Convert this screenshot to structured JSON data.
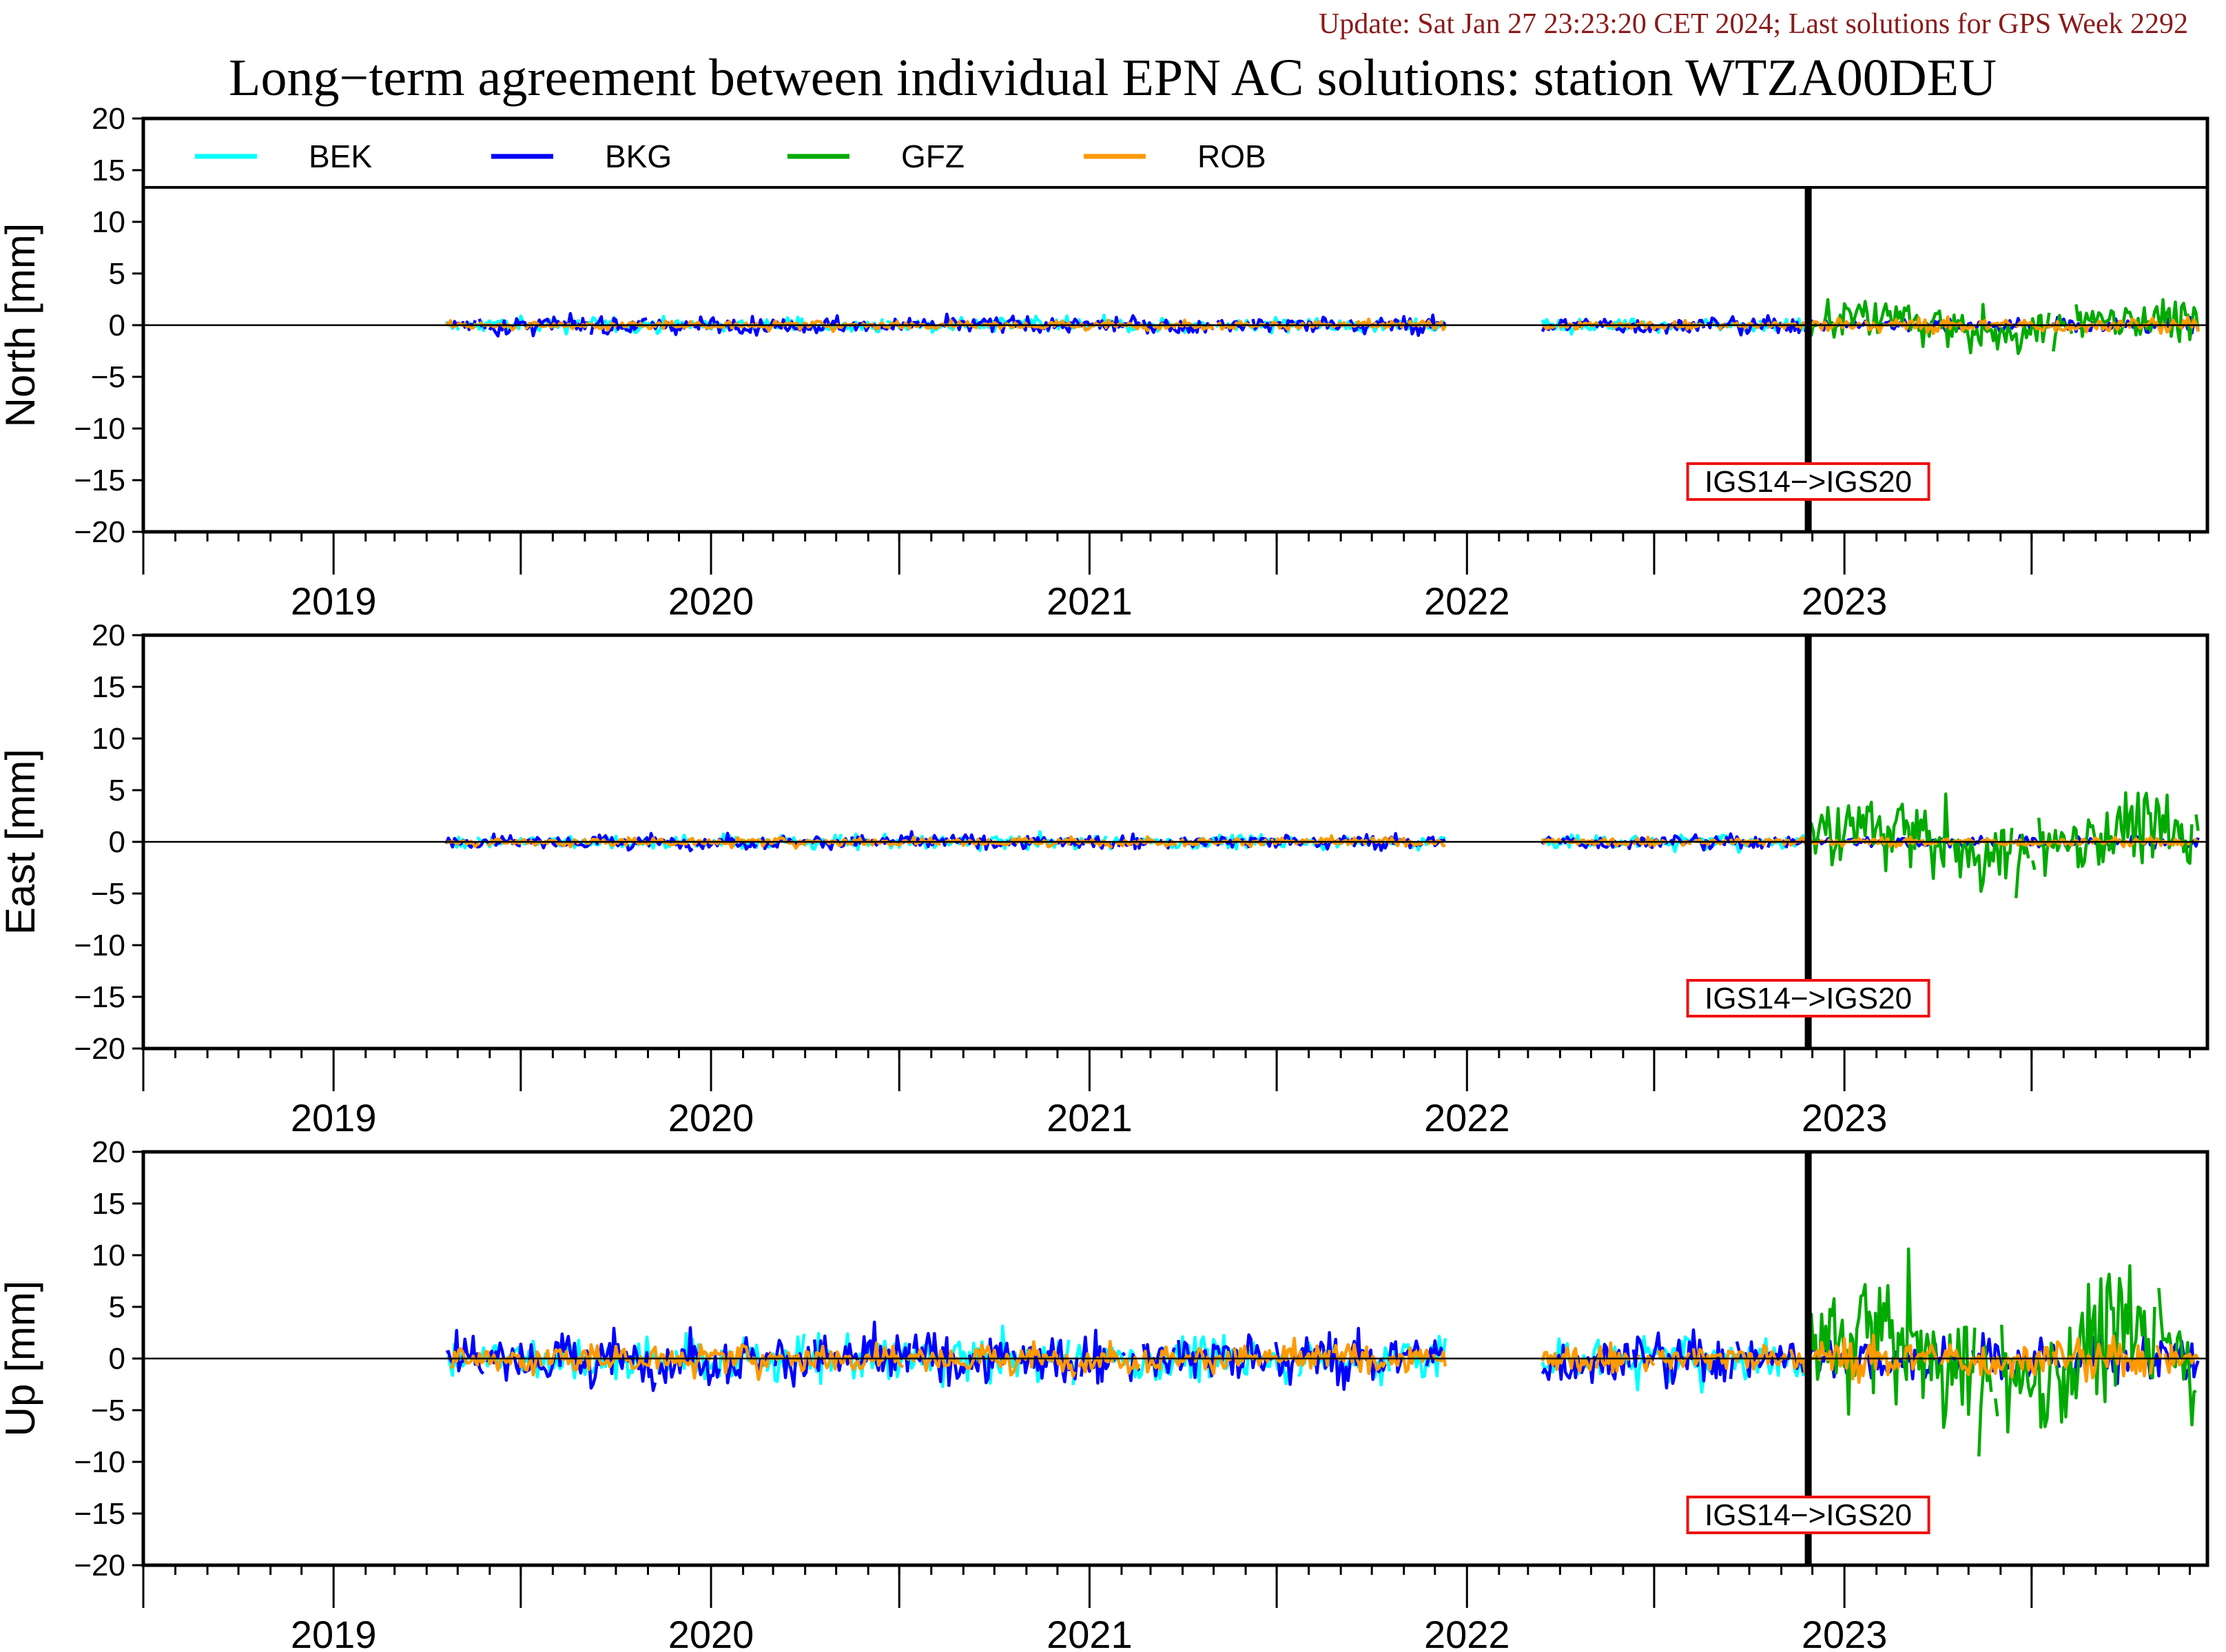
{
  "header": {
    "update_text": "Update: Sat Jan 27 23:23:20 CET 2024; Last solutions for GPS Week 2292",
    "update_color": "#8b1a1a"
  },
  "chart_data": {
    "type": "line",
    "title": "Long−term agreement between individual EPN AC solutions: station WTZA00DEU",
    "legend": {
      "placement": "top",
      "entries": [
        {
          "name": "BEK",
          "color": "#00ffff"
        },
        {
          "name": "BKG",
          "color": "#0000ff"
        },
        {
          "name": "GFZ",
          "color": "#00aa00"
        },
        {
          "name": "ROB",
          "color": "#ff9900"
        }
      ]
    },
    "x_axis": {
      "range": [
        "2018-07-01",
        "2023-12-18"
      ],
      "year_labels": [
        "2019",
        "2020",
        "2021",
        "2022",
        "2023"
      ],
      "grid": false
    },
    "y_axis": {
      "ylim": [
        -20,
        20
      ],
      "ticks": [
        20,
        15,
        10,
        5,
        0,
        -5,
        -10,
        -15,
        -20
      ],
      "tick_labels": [
        "20",
        "15",
        "10",
        "5",
        "0",
        "−5",
        "−10",
        "−15",
        "−20"
      ]
    },
    "event": {
      "date": "2022-11-27",
      "label": "IGS14−>IGS20",
      "box_color": "#ee1111"
    },
    "data_periods": [
      {
        "start": "2019-04-20",
        "end": "2021-12-12"
      },
      {
        "start": "2022-03-15",
        "end": "2023-12-10"
      }
    ],
    "panels": [
      {
        "ylabel": "North [mm]",
        "series": [
          {
            "name": "BEK",
            "pre_event_spread_mm": 0.5,
            "post_event_spread_mm": 0.0
          },
          {
            "name": "BKG",
            "pre_event_spread_mm": 0.6,
            "post_event_spread_mm": 0.5
          },
          {
            "name": "GFZ",
            "pre_event_spread_mm": 0.0,
            "post_event_spread_mm": 1.4
          },
          {
            "name": "ROB",
            "pre_event_spread_mm": 0.3,
            "post_event_spread_mm": 0.5
          }
        ]
      },
      {
        "ylabel": "East [mm]",
        "series": [
          {
            "name": "BEK",
            "pre_event_spread_mm": 0.5,
            "post_event_spread_mm": 0.0
          },
          {
            "name": "BKG",
            "pre_event_spread_mm": 0.5,
            "post_event_spread_mm": 0.4
          },
          {
            "name": "GFZ",
            "pre_event_spread_mm": 0.0,
            "post_event_spread_mm": 2.5
          },
          {
            "name": "ROB",
            "pre_event_spread_mm": 0.3,
            "post_event_spread_mm": 0.3
          }
        ]
      },
      {
        "ylabel": "Up [mm]",
        "series": [
          {
            "name": "BEK",
            "pre_event_spread_mm": 1.6,
            "post_event_spread_mm": 0.0
          },
          {
            "name": "BKG",
            "pre_event_spread_mm": 1.8,
            "post_event_spread_mm": 1.6
          },
          {
            "name": "GFZ",
            "pre_event_spread_mm": 0.0,
            "post_event_spread_mm": 4.5
          },
          {
            "name": "ROB",
            "pre_event_spread_mm": 1.0,
            "post_event_spread_mm": 1.4
          }
        ]
      }
    ]
  }
}
